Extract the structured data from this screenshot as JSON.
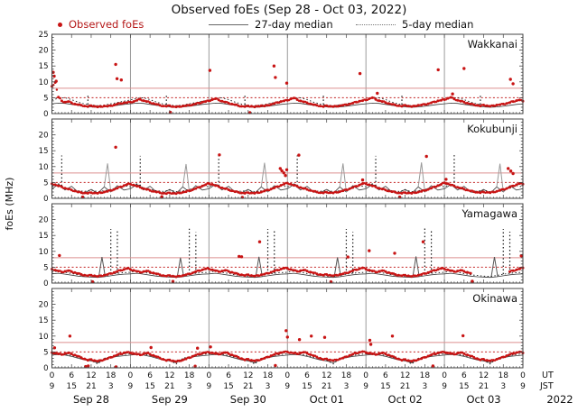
{
  "title": "Observed foEs (Sep 28 - Oct 03, 2022)",
  "legend": {
    "observed_label": "Observed foEs",
    "median27_label": "27-day median",
    "median5_label": "5-day median"
  },
  "axis": {
    "ylabel": "foEs (MHz)",
    "ut_label": "UT",
    "jst_label": "JST",
    "year_label": "2022"
  },
  "colors": {
    "observed": "#c81414",
    "legend_red": "#b51818",
    "median27": "#3c3c3c",
    "median5": "#1a1a1a",
    "hline_solid": "#dc8f8f",
    "hline_dotted": "#c22222",
    "day_grid": "#909090",
    "border": "#444444",
    "text": "#111111"
  },
  "chart_data": {
    "type": "scatter",
    "title": "Observed foEs (Sep 28 - Oct 03, 2022)",
    "x_unit": "hours since Sep 28 00:00 UT",
    "x_range": [
      0,
      144
    ],
    "hours_per_day": 24,
    "day_labels": [
      "Sep 28",
      "Sep 29",
      "Sep 30",
      "Oct 01",
      "Oct 02",
      "Oct 03"
    ],
    "ut_ticks": [
      "0",
      "6",
      "12",
      "18"
    ],
    "jst_ticks": [
      "9",
      "15",
      "21",
      "3"
    ],
    "panels": [
      {
        "name": "Wakkanai",
        "ylim": [
          0,
          25
        ],
        "yticks": [
          0,
          5,
          10,
          15,
          20,
          25
        ],
        "hline_solid": 8,
        "hline_dotted": 5,
        "median27_spike_color": "#8f8f8f",
        "observed_hourly": [
          8.6,
          9.8,
          5.2,
          4.0,
          3.6,
          3.8,
          3.4,
          3.0,
          2.8,
          2.6,
          2.4,
          2.2,
          2.5,
          2.3,
          2.1,
          2.2,
          2.4,
          2.3,
          2.5,
          2.7,
          3.0,
          3.2,
          3.4,
          3.5,
          3.6,
          3.8,
          4.2,
          4.5,
          4.1,
          3.8,
          3.5,
          3.2,
          2.9,
          2.6,
          2.4,
          2.3,
          2.5,
          2.2,
          2.1,
          2.2,
          2.4,
          2.5,
          2.6,
          2.8,
          3.1,
          3.3,
          3.6,
          3.8,
          4.0,
          4.4,
          4.7,
          4.3,
          3.9,
          3.6,
          3.3,
          3.0,
          2.8,
          2.5,
          2.3,
          2.2,
          2.4,
          2.3,
          2.1,
          2.3,
          2.5,
          2.4,
          2.6,
          2.9,
          3.2,
          3.5,
          3.8,
          4.0,
          4.2,
          4.6,
          4.9,
          4.4,
          4.0,
          3.7,
          3.4,
          3.1,
          2.8,
          2.6,
          2.4,
          2.2,
          2.5,
          2.3,
          2.2,
          2.3,
          2.5,
          2.6,
          2.8,
          3.0,
          3.3,
          3.6,
          3.9,
          4.1,
          4.3,
          4.7,
          5.0,
          4.5,
          4.1,
          3.8,
          3.5,
          3.2,
          2.9,
          2.7,
          2.5,
          2.3,
          2.6,
          2.4,
          2.2,
          2.4,
          2.6,
          2.7,
          2.9,
          3.1,
          3.4,
          3.7,
          4.0,
          4.2,
          4.4,
          4.8,
          5.1,
          4.6,
          4.2,
          3.9,
          3.6,
          3.3,
          3.0,
          2.8,
          2.6,
          2.4,
          2.7,
          2.5,
          2.3,
          2.5,
          2.7,
          2.8,
          3.0,
          3.2,
          3.5,
          3.8,
          4.1,
          4.3,
          3.9
        ],
        "outliers": [
          [
            0.4,
            13.0
          ],
          [
            0.7,
            11.8
          ],
          [
            1.3,
            10.2
          ],
          [
            19.5,
            15.5
          ],
          [
            19.9,
            11.0
          ],
          [
            21.2,
            10.6
          ],
          [
            48.3,
            13.6
          ],
          [
            67.9,
            15.0
          ],
          [
            68.3,
            11.4
          ],
          [
            71.8,
            9.6
          ],
          [
            94.2,
            12.6
          ],
          [
            99.5,
            6.4
          ],
          [
            118.1,
            13.8
          ],
          [
            122.5,
            6.2
          ],
          [
            126.0,
            14.2
          ],
          [
            140.2,
            10.8
          ],
          [
            141.0,
            9.4
          ],
          [
            36.2,
            0.4
          ],
          [
            60.5,
            0.3
          ]
        ],
        "median27_daily_2h": [
          3.1,
          3.3,
          3.2,
          2.9,
          2.6,
          2.3,
          2.1,
          2.0,
          2.1,
          2.3,
          2.6,
          2.9
        ],
        "median5_daily_2h": [
          4.3,
          4.8,
          5.0,
          4.4,
          3.6,
          3.0,
          2.7,
          2.5,
          2.7,
          3.1,
          3.5,
          3.9
        ],
        "median27_spikes": [],
        "median5_spikes": [
          [
            11,
            5.8
          ],
          [
            35,
            5.6
          ],
          [
            59,
            5.9
          ],
          [
            83,
            5.7
          ],
          [
            107,
            5.9
          ],
          [
            131,
            5.7
          ]
        ]
      },
      {
        "name": "Kokubunji",
        "ylim": [
          0,
          25
        ],
        "yticks": [
          0,
          5,
          10,
          15,
          20
        ],
        "hline_solid": 8,
        "hline_dotted": 5,
        "median27_spike_color": "#9a9a9a",
        "observed_hourly": [
          4.6,
          4.3,
          3.9,
          3.6,
          3.2,
          2.9,
          2.6,
          2.3,
          2.0,
          1.8,
          1.7,
          1.6,
          1.8,
          1.7,
          1.6,
          1.8,
          2.0,
          2.2,
          2.5,
          2.8,
          3.2,
          3.6,
          4.0,
          4.4,
          4.5,
          4.2,
          3.8,
          3.5,
          3.1,
          2.8,
          2.5,
          2.2,
          2.0,
          1.8,
          1.6,
          1.5,
          1.7,
          1.6,
          1.5,
          1.7,
          1.9,
          2.1,
          2.4,
          2.7,
          3.1,
          3.5,
          3.9,
          4.3,
          4.7,
          4.4,
          4.0,
          3.7,
          3.3,
          3.0,
          2.7,
          2.4,
          2.1,
          1.9,
          1.7,
          1.6,
          1.8,
          1.7,
          1.6,
          1.8,
          2.0,
          2.3,
          2.6,
          2.9,
          3.3,
          3.7,
          4.1,
          4.5,
          4.8,
          4.5,
          4.1,
          3.8,
          3.4,
          3.1,
          2.8,
          2.5,
          2.2,
          2.0,
          1.8,
          1.7,
          1.9,
          1.8,
          1.7,
          1.9,
          2.1,
          2.4,
          2.7,
          3.0,
          3.4,
          3.8,
          4.2,
          4.6,
          4.6,
          4.3,
          3.9,
          3.6,
          3.2,
          2.9,
          2.6,
          2.3,
          2.1,
          1.9,
          1.7,
          1.6,
          1.8,
          1.7,
          1.6,
          1.8,
          2.0,
          2.2,
          2.5,
          2.8,
          3.2,
          3.6,
          4.0,
          4.4,
          4.9,
          4.6,
          4.2,
          3.9,
          3.5,
          3.2,
          2.9,
          2.6,
          2.3,
          2.1,
          1.9,
          1.8,
          2.0,
          1.9,
          1.8,
          2.0,
          2.2,
          2.5,
          2.8,
          3.1,
          3.5,
          3.9,
          4.3,
          4.7,
          4.5
        ],
        "outliers": [
          [
            19.5,
            16.1
          ],
          [
            51.2,
            13.7
          ],
          [
            75.5,
            13.6
          ],
          [
            114.5,
            13.2
          ],
          [
            69.8,
            9.4
          ],
          [
            70.3,
            8.7
          ],
          [
            70.9,
            8.0
          ],
          [
            71.4,
            7.2
          ],
          [
            71.8,
            9.0
          ],
          [
            139.5,
            9.4
          ],
          [
            140.3,
            8.6
          ],
          [
            141.0,
            7.8
          ],
          [
            95.0,
            5.8
          ],
          [
            120.5,
            6.0
          ],
          [
            9.4,
            0.4
          ],
          [
            33.6,
            0.5
          ],
          [
            58.2,
            0.3
          ],
          [
            106.3,
            0.4
          ]
        ],
        "median27_daily_2h": [
          3.0,
          4.4,
          2.6,
          3.8,
          2.0,
          1.7,
          2.8,
          1.6,
          3.6,
          2.0,
          4.0,
          2.6
        ],
        "median5_daily_2h": [
          3.6,
          4.6,
          3.2,
          2.8,
          2.4,
          2.2,
          2.6,
          2.1,
          2.4,
          2.8,
          3.2,
          4.0
        ],
        "median27_spikes": [
          [
            17,
            11.0
          ],
          [
            41,
            10.8
          ],
          [
            65,
            11.2
          ],
          [
            89,
            11.0
          ],
          [
            113,
            11.3
          ],
          [
            137,
            10.9
          ]
        ],
        "median5_spikes": [
          [
            3,
            13.5
          ],
          [
            27,
            13.4
          ],
          [
            51,
            13.6
          ],
          [
            75,
            13.5
          ],
          [
            99,
            13.4
          ],
          [
            123,
            13.6
          ]
        ]
      },
      {
        "name": "Yamagawa",
        "ylim": [
          0,
          25
        ],
        "yticks": [
          0,
          5,
          10,
          15,
          20
        ],
        "hline_solid": 8,
        "hline_dotted": 5,
        "median27_spike_color": "#555555",
        "observed_hourly": [
          4.4,
          4.1,
          3.8,
          3.5,
          3.7,
          3.9,
          3.6,
          3.3,
          3.0,
          2.7,
          2.5,
          2.3,
          2.5,
          2.3,
          2.1,
          2.3,
          2.5,
          2.7,
          3.0,
          3.3,
          3.7,
          4.0,
          4.3,
          4.6,
          4.3,
          4.0,
          3.7,
          3.4,
          3.6,
          3.8,
          3.5,
          3.2,
          2.9,
          2.6,
          2.4,
          2.2,
          2.4,
          2.2,
          2.0,
          2.2,
          2.4,
          2.6,
          2.9,
          3.2,
          3.6,
          3.9,
          4.2,
          4.5,
          4.5,
          4.2,
          3.9,
          3.6,
          3.8,
          4.0,
          3.7,
          3.4,
          3.1,
          2.8,
          2.6,
          2.4,
          2.6,
          2.4,
          2.2,
          2.4,
          2.6,
          2.8,
          3.1,
          3.4,
          3.8,
          4.1,
          4.4,
          4.7,
          4.6,
          4.3,
          4.0,
          3.7,
          3.9,
          4.1,
          3.8,
          3.5,
          3.2,
          2.9,
          2.7,
          2.5,
          2.7,
          2.5,
          2.3,
          2.5,
          2.7,
          2.9,
          3.2,
          3.5,
          3.9,
          4.2,
          4.5,
          4.8,
          4.4,
          4.1,
          3.8,
          3.5,
          3.7,
          3.9,
          3.6,
          3.3,
          3.0,
          2.7,
          2.5,
          2.3,
          2.5,
          2.3,
          2.1,
          2.3,
          2.5,
          2.7,
          3.0,
          3.3,
          3.7,
          4.0,
          4.3,
          4.6,
          4.5,
          4.2,
          3.9,
          3.6,
          3.8,
          4.0,
          3.7,
          3.4,
          3.1,
          null,
          null,
          null,
          null,
          null,
          null,
          null,
          null,
          null,
          null,
          null,
          3.6,
          3.9,
          4.2,
          4.5,
          4.8
        ],
        "outliers": [
          [
            2.3,
            8.7
          ],
          [
            57.2,
            8.4
          ],
          [
            58.0,
            8.3
          ],
          [
            63.5,
            13.0
          ],
          [
            90.5,
            8.2
          ],
          [
            97.0,
            10.2
          ],
          [
            104.8,
            9.4
          ],
          [
            113.5,
            13.0
          ],
          [
            143.5,
            8.6
          ],
          [
            12.4,
            0.4
          ],
          [
            37.0,
            0.5
          ],
          [
            85.3,
            0.4
          ],
          [
            128.5,
            0.6
          ]
        ],
        "median27_daily_2h": [
          2.9,
          3.1,
          2.8,
          2.5,
          2.2,
          2.0,
          1.9,
          1.8,
          2.0,
          2.3,
          2.6,
          2.8
        ],
        "median5_daily_2h": [
          3.4,
          3.8,
          3.4,
          3.0,
          2.6,
          2.4,
          2.2,
          2.1,
          2.4,
          2.8,
          3.1,
          3.3
        ],
        "median27_spikes": [
          [
            15.3,
            8.2
          ],
          [
            39.3,
            8.0
          ],
          [
            63.3,
            8.3
          ],
          [
            87.3,
            8.1
          ],
          [
            111.3,
            8.4
          ],
          [
            135.3,
            8.2
          ]
        ],
        "median5_spikes": [
          [
            18,
            17.0
          ],
          [
            20,
            16.3
          ],
          [
            42,
            17.1
          ],
          [
            44,
            16.0
          ],
          [
            66,
            17.0
          ],
          [
            68,
            16.4
          ],
          [
            90,
            17.0
          ],
          [
            92,
            16.1
          ],
          [
            114,
            17.2
          ],
          [
            116,
            16.5
          ],
          [
            138,
            17.0
          ],
          [
            140,
            16.2
          ]
        ]
      },
      {
        "name": "Okinawa",
        "ylim": [
          0,
          25
        ],
        "yticks": [
          0,
          5,
          10,
          15,
          20
        ],
        "hline_solid": 8,
        "hline_dotted": 5,
        "median27_spike_color": "#555555",
        "observed_hourly": [
          4.8,
          4.6,
          4.4,
          4.2,
          4.5,
          4.7,
          4.4,
          4.0,
          3.6,
          3.2,
          2.8,
          2.4,
          2.6,
          2.3,
          2.1,
          2.3,
          2.6,
          2.9,
          3.3,
          3.7,
          4.1,
          4.4,
          4.7,
          4.9,
          4.7,
          4.5,
          4.3,
          4.1,
          4.4,
          4.6,
          4.3,
          3.9,
          3.5,
          3.1,
          2.7,
          2.3,
          2.5,
          2.2,
          2.0,
          2.2,
          2.5,
          2.8,
          3.2,
          3.6,
          4.0,
          4.3,
          4.6,
          4.8,
          4.9,
          4.7,
          4.5,
          4.3,
          4.6,
          4.8,
          4.5,
          4.1,
          3.7,
          3.3,
          2.9,
          2.5,
          2.7,
          2.4,
          2.2,
          2.4,
          2.7,
          3.0,
          3.4,
          3.8,
          4.2,
          4.5,
          4.8,
          5.0,
          5.0,
          4.8,
          4.6,
          4.4,
          4.7,
          4.9,
          4.6,
          4.2,
          3.8,
          3.4,
          3.0,
          2.6,
          2.8,
          2.5,
          2.3,
          2.5,
          2.8,
          3.1,
          3.5,
          3.9,
          4.3,
          4.6,
          4.9,
          5.1,
          4.8,
          4.6,
          4.4,
          4.2,
          4.5,
          4.7,
          4.4,
          4.0,
          3.6,
          3.2,
          2.8,
          2.4,
          2.6,
          2.3,
          2.1,
          2.3,
          2.6,
          2.9,
          3.3,
          3.7,
          4.1,
          4.4,
          4.7,
          4.9,
          4.9,
          4.7,
          4.5,
          4.3,
          4.6,
          4.8,
          4.5,
          4.1,
          3.7,
          3.3,
          2.9,
          2.5,
          2.7,
          2.4,
          2.2,
          2.4,
          2.7,
          3.0,
          3.4,
          3.8,
          4.2,
          4.5,
          4.8,
          5.0,
          4.7
        ],
        "outliers": [
          [
            0.8,
            6.3
          ],
          [
            5.5,
            10.0
          ],
          [
            30.3,
            6.4
          ],
          [
            44.5,
            6.2
          ],
          [
            48.5,
            6.6
          ],
          [
            71.6,
            11.7
          ],
          [
            72.0,
            9.7
          ],
          [
            75.7,
            8.9
          ],
          [
            79.3,
            10.0
          ],
          [
            83.4,
            9.6
          ],
          [
            97.2,
            8.7
          ],
          [
            97.5,
            7.4
          ],
          [
            104.1,
            10.0
          ],
          [
            125.7,
            10.1
          ],
          [
            10.3,
            0.4
          ],
          [
            11.1,
            0.6
          ],
          [
            19.6,
            0.3
          ],
          [
            43.8,
            0.5
          ],
          [
            68.3,
            0.7
          ],
          [
            116.5,
            0.6
          ]
        ],
        "median27_daily_2h": [
          4.0,
          4.2,
          4.0,
          3.6,
          3.0,
          2.5,
          2.2,
          1.6,
          2.8,
          3.2,
          3.6,
          3.8
        ],
        "median5_daily_2h": [
          4.4,
          4.6,
          4.3,
          3.9,
          3.3,
          2.8,
          2.4,
          1.2,
          3.0,
          3.5,
          3.9,
          4.2
        ],
        "median27_spikes": [],
        "median5_spikes": []
      }
    ]
  }
}
